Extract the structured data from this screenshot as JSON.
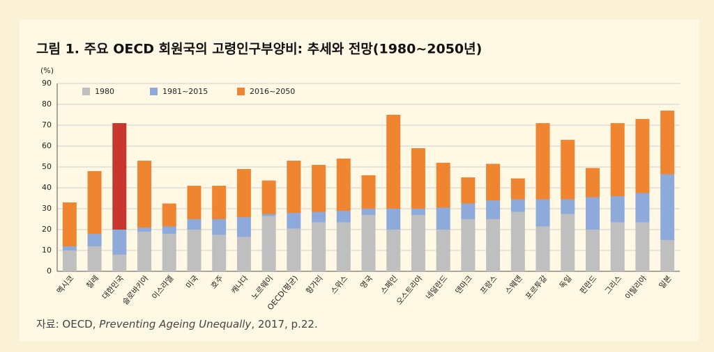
{
  "chart_data": {
    "type": "stacked-bar",
    "title": "그림 1.  주요 OECD 회원국의 고령인구부양비: 추세와 전망(1980~2050년)",
    "y_label": "(%)",
    "categories": [
      "멕시코",
      "칠레",
      "대한민국",
      "슬로바키아",
      "이스라엘",
      "미국",
      "호주",
      "캐나다",
      "노르웨이",
      "OECD(평균)",
      "헝가리",
      "스위스",
      "영국",
      "스페인",
      "오스트리아",
      "네덜란드",
      "덴마크",
      "프랑스",
      "스웨덴",
      "포르투갈",
      "독일",
      "핀란드",
      "그리스",
      "이탈리아",
      "일본"
    ],
    "series": [
      {
        "name": "1980",
        "color": "#bfbfbf",
        "values": [
          10,
          12,
          8,
          19,
          18,
          20,
          17.5,
          16.5,
          26.5,
          20.5,
          23.5,
          23.5,
          27,
          20,
          27,
          20,
          25,
          25,
          28.5,
          21.5,
          27.5,
          20,
          23.5,
          23.5,
          15
        ]
      },
      {
        "name": "1981~2015",
        "color": "#8eaadb",
        "values": [
          2,
          6,
          12,
          2,
          3.5,
          5,
          7.5,
          9.5,
          1,
          7.5,
          5,
          5.5,
          3,
          10,
          3,
          10.5,
          7.5,
          9,
          6,
          13,
          7,
          15.5,
          12.5,
          14,
          31.5
        ]
      },
      {
        "name": "2016~2050",
        "color": "#ef8530",
        "values": [
          21,
          30,
          51,
          32,
          11,
          16,
          16,
          23,
          16,
          25,
          22.5,
          25,
          16,
          45,
          29,
          21.5,
          12.5,
          17.5,
          10,
          36.5,
          28.5,
          14,
          35,
          35.5,
          30.5
        ],
        "colors": [
          "#ef8530",
          "#ef8530",
          "#c9362c",
          "#ef8530",
          "#ef8530",
          "#ef8530",
          "#ef8530",
          "#ef8530",
          "#ef8530",
          "#ef8530",
          "#ef8530",
          "#ef8530",
          "#ef8530",
          "#ef8530",
          "#ef8530",
          "#ef8530",
          "#ef8530",
          "#ef8530",
          "#ef8530",
          "#ef8530",
          "#ef8530",
          "#ef8530",
          "#ef8530",
          "#ef8530",
          "#ef8530"
        ]
      }
    ],
    "ylim": [
      0,
      90
    ],
    "yticks": [
      0,
      10,
      20,
      30,
      40,
      50,
      60,
      70,
      80,
      90
    ],
    "grid": true
  },
  "source": {
    "prefix": "자료: OECD, ",
    "italic": "Preventing Ageing Unequally",
    "suffix": ", 2017, p.22."
  }
}
